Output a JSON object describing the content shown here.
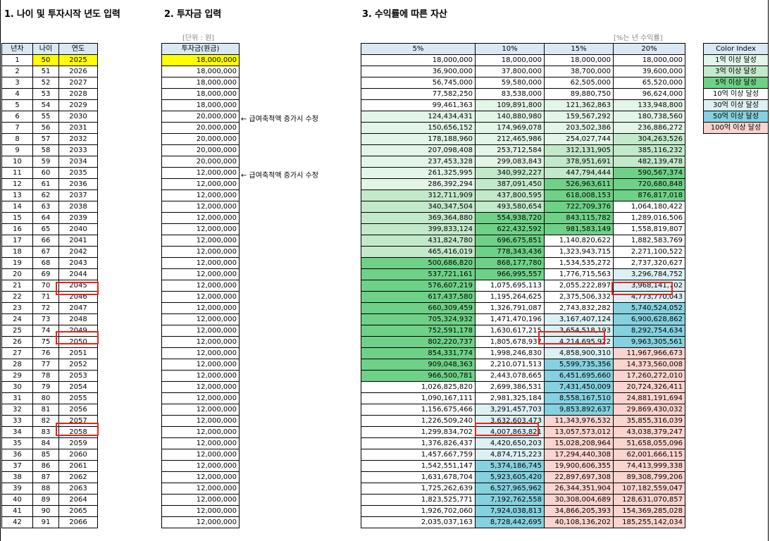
{
  "headings": {
    "age_input": "1. 나이 및 투자시작 년도 입력",
    "investment_input": "2. 투자금 입력",
    "assets_by_return": "3. 수익률에 따른 자산"
  },
  "unit_labels": {
    "won": "[단위 : 원]",
    "annual_return": "[%는 년 수익률]"
  },
  "table1_headers": [
    "년차",
    "나이",
    "연도"
  ],
  "table2_header": "투자금(원금)",
  "table3_headers": [
    "5%",
    "10%",
    "15%",
    "20%"
  ],
  "notes": [
    "← 급여축적액 증가시 수정",
    "← 급여축적액 증가시 수정"
  ],
  "color_index": {
    "title": "Color Index",
    "items": [
      {
        "label": "1억 이상 달성",
        "color": "#e3f5e6"
      },
      {
        "label": "3억 이상 달성",
        "color": "#c3e9cb"
      },
      {
        "label": "5억 이상 달성",
        "color": "#6fd187"
      },
      {
        "label": "10억 이상 달성",
        "color": "#ffffff"
      },
      {
        "label": "30억 이상 달성",
        "color": "#ddf1f5"
      },
      {
        "label": "50억 이상 달성",
        "color": "#86d1df"
      },
      {
        "label": "100억 이상 달성",
        "color": "#fbd4cf"
      }
    ]
  },
  "rows": [
    {
      "year": "1",
      "age": "50",
      "cal": "2025",
      "inv": "18,000,000",
      "r5": "18,000,000",
      "r10": "18,000,000",
      "r15": "18,000,000",
      "r20": "18,000,000"
    },
    {
      "year": "2",
      "age": "51",
      "cal": "2026",
      "inv": "18,000,000",
      "r5": "36,900,000",
      "r10": "37,800,000",
      "r15": "38,700,000",
      "r20": "39,600,000"
    },
    {
      "year": "3",
      "age": "52",
      "cal": "2027",
      "inv": "18,000,000",
      "r5": "56,745,000",
      "r10": "59,580,000",
      "r15": "62,505,000",
      "r20": "65,520,000"
    },
    {
      "year": "4",
      "age": "53",
      "cal": "2028",
      "inv": "18,000,000",
      "r5": "77,582,250",
      "r10": "83,538,000",
      "r15": "89,880,750",
      "r20": "96,624,000"
    },
    {
      "year": "5",
      "age": "54",
      "cal": "2029",
      "inv": "18,000,000",
      "r5": "99,461,363",
      "r10": "109,891,800",
      "r15": "121,362,863",
      "r20": "133,948,800"
    },
    {
      "year": "6",
      "age": "55",
      "cal": "2030",
      "inv": "20,000,000",
      "r5": "124,434,431",
      "r10": "140,880,980",
      "r15": "159,567,292",
      "r20": "180,738,560"
    },
    {
      "year": "7",
      "age": "56",
      "cal": "2031",
      "inv": "20,000,000",
      "r5": "150,656,152",
      "r10": "174,969,078",
      "r15": "203,502,386",
      "r20": "236,886,272"
    },
    {
      "year": "8",
      "age": "57",
      "cal": "2032",
      "inv": "20,000,000",
      "r5": "178,188,960",
      "r10": "212,465,986",
      "r15": "254,027,744",
      "r20": "304,263,526"
    },
    {
      "year": "9",
      "age": "58",
      "cal": "2033",
      "inv": "20,000,000",
      "r5": "207,098,408",
      "r10": "253,712,584",
      "r15": "312,131,905",
      "r20": "385,116,232"
    },
    {
      "year": "10",
      "age": "59",
      "cal": "2034",
      "inv": "20,000,000",
      "r5": "237,453,328",
      "r10": "299,083,843",
      "r15": "378,951,691",
      "r20": "482,139,478"
    },
    {
      "year": "11",
      "age": "60",
      "cal": "2035",
      "inv": "12,000,000",
      "r5": "261,325,995",
      "r10": "340,992,227",
      "r15": "447,794,444",
      "r20": "590,567,374"
    },
    {
      "year": "12",
      "age": "61",
      "cal": "2036",
      "inv": "12,000,000",
      "r5": "286,392,294",
      "r10": "387,091,450",
      "r15": "526,963,611",
      "r20": "720,680,848"
    },
    {
      "year": "13",
      "age": "62",
      "cal": "2037",
      "inv": "12,000,000",
      "r5": "312,711,909",
      "r10": "437,800,595",
      "r15": "618,008,153",
      "r20": "876,817,018"
    },
    {
      "year": "14",
      "age": "63",
      "cal": "2038",
      "inv": "12,000,000",
      "r5": "340,347,504",
      "r10": "493,580,654",
      "r15": "722,709,376",
      "r20": "1,064,180,422"
    },
    {
      "year": "15",
      "age": "64",
      "cal": "2039",
      "inv": "12,000,000",
      "r5": "369,364,880",
      "r10": "554,938,720",
      "r15": "843,115,782",
      "r20": "1,289,016,506"
    },
    {
      "year": "16",
      "age": "65",
      "cal": "2040",
      "inv": "12,000,000",
      "r5": "399,833,124",
      "r10": "622,432,592",
      "r15": "981,583,149",
      "r20": "1,558,819,807"
    },
    {
      "year": "17",
      "age": "66",
      "cal": "2041",
      "inv": "12,000,000",
      "r5": "431,824,780",
      "r10": "696,675,851",
      "r15": "1,140,820,622",
      "r20": "1,882,583,769"
    },
    {
      "year": "18",
      "age": "67",
      "cal": "2042",
      "inv": "12,000,000",
      "r5": "465,416,019",
      "r10": "778,343,436",
      "r15": "1,323,943,715",
      "r20": "2,271,100,522"
    },
    {
      "year": "19",
      "age": "68",
      "cal": "2043",
      "inv": "12,000,000",
      "r5": "500,686,820",
      "r10": "868,177,780",
      "r15": "1,534,535,272",
      "r20": "2,737,320,627"
    },
    {
      "year": "20",
      "age": "69",
      "cal": "2044",
      "inv": "12,000,000",
      "r5": "537,721,161",
      "r10": "966,995,557",
      "r15": "1,776,715,563",
      "r20": "3,296,784,752"
    },
    {
      "year": "21",
      "age": "70",
      "cal": "2045",
      "inv": "12,000,000",
      "r5": "576,607,219",
      "r10": "1,075,695,113",
      "r15": "2,055,222,897",
      "r20": "3,968,141,702"
    },
    {
      "year": "22",
      "age": "71",
      "cal": "2046",
      "inv": "12,000,000",
      "r5": "617,437,580",
      "r10": "1,195,264,625",
      "r15": "2,375,506,332",
      "r20": "4,773,770,043"
    },
    {
      "year": "23",
      "age": "72",
      "cal": "2047",
      "inv": "12,000,000",
      "r5": "660,309,459",
      "r10": "1,326,791,087",
      "r15": "2,743,832,282",
      "r20": "5,740,524,052"
    },
    {
      "year": "24",
      "age": "73",
      "cal": "2048",
      "inv": "12,000,000",
      "r5": "705,324,932",
      "r10": "1,471,470,196",
      "r15": "3,167,407,124",
      "r20": "6,900,628,862"
    },
    {
      "year": "25",
      "age": "74",
      "cal": "2049",
      "inv": "12,000,000",
      "r5": "752,591,178",
      "r10": "1,630,617,215",
      "r15": "3,654,518,193",
      "r20": "8,292,754,634"
    },
    {
      "year": "26",
      "age": "75",
      "cal": "2050",
      "inv": "12,000,000",
      "r5": "802,220,737",
      "r10": "1,805,678,937",
      "r15": "4,214,695,922",
      "r20": "9,963,305,561"
    },
    {
      "year": "27",
      "age": "76",
      "cal": "2051",
      "inv": "12,000,000",
      "r5": "854,331,774",
      "r10": "1,998,246,830",
      "r15": "4,858,900,310",
      "r20": "11,967,966,673"
    },
    {
      "year": "28",
      "age": "77",
      "cal": "2052",
      "inv": "12,000,000",
      "r5": "909,048,363",
      "r10": "2,210,071,513",
      "r15": "5,599,735,356",
      "r20": "14,373,560,008"
    },
    {
      "year": "29",
      "age": "78",
      "cal": "2053",
      "inv": "12,000,000",
      "r5": "966,500,781",
      "r10": "2,443,078,665",
      "r15": "6,451,695,660",
      "r20": "17,260,272,010"
    },
    {
      "year": "30",
      "age": "79",
      "cal": "2054",
      "inv": "12,000,000",
      "r5": "1,026,825,820",
      "r10": "2,699,386,531",
      "r15": "7,431,450,009",
      "r20": "20,724,326,411"
    },
    {
      "year": "31",
      "age": "80",
      "cal": "2055",
      "inv": "12,000,000",
      "r5": "1,090,167,111",
      "r10": "2,981,325,184",
      "r15": "8,558,167,510",
      "r20": "24,881,191,694"
    },
    {
      "year": "32",
      "age": "81",
      "cal": "2056",
      "inv": "12,000,000",
      "r5": "1,156,675,466",
      "r10": "3,291,457,703",
      "r15": "9,853,892,637",
      "r20": "29,869,430,032"
    },
    {
      "year": "33",
      "age": "82",
      "cal": "2057",
      "inv": "12,000,000",
      "r5": "1,226,509,240",
      "r10": "3,632,603,473",
      "r15": "11,343,976,532",
      "r20": "35,855,316,039"
    },
    {
      "year": "34",
      "age": "83",
      "cal": "2058",
      "inv": "12,000,000",
      "r5": "1,299,834,702",
      "r10": "4,007,863,821",
      "r15": "13,057,573,012",
      "r20": "43,038,379,247"
    },
    {
      "year": "35",
      "age": "84",
      "cal": "2059",
      "inv": "12,000,000",
      "r5": "1,376,826,437",
      "r10": "4,420,650,203",
      "r15": "15,028,208,964",
      "r20": "51,658,055,096"
    },
    {
      "year": "36",
      "age": "85",
      "cal": "2060",
      "inv": "12,000,000",
      "r5": "1,457,667,759",
      "r10": "4,874,715,223",
      "r15": "17,294,440,308",
      "r20": "62,001,666,115"
    },
    {
      "year": "37",
      "age": "86",
      "cal": "2061",
      "inv": "12,000,000",
      "r5": "1,542,551,147",
      "r10": "5,374,186,745",
      "r15": "19,900,606,355",
      "r20": "74,413,999,338"
    },
    {
      "year": "38",
      "age": "87",
      "cal": "2062",
      "inv": "12,000,000",
      "r5": "1,631,678,704",
      "r10": "5,923,605,420",
      "r15": "22,897,697,308",
      "r20": "89,308,799,206"
    },
    {
      "year": "39",
      "age": "88",
      "cal": "2063",
      "inv": "12,000,000",
      "r5": "1,725,262,639",
      "r10": "6,527,965,962",
      "r15": "26,344,351,904",
      "r20": "107,182,559,047"
    },
    {
      "year": "40",
      "age": "89",
      "cal": "2064",
      "inv": "12,000,000",
      "r5": "1,823,525,771",
      "r10": "7,192,762,558",
      "r15": "30,308,004,689",
      "r20": "128,631,070,857"
    },
    {
      "year": "41",
      "age": "90",
      "cal": "2065",
      "inv": "12,000,000",
      "r5": "1,926,702,060",
      "r10": "7,924,038,813",
      "r15": "34,866,205,393",
      "r20": "154,369,285,028"
    },
    {
      "year": "42",
      "age": "91",
      "cal": "2066",
      "inv": "12,000,000",
      "r5": "2,035,037,163",
      "r10": "8,728,442,695",
      "r15": "40,108,136,202",
      "r20": "185,255,142,034"
    }
  ]
}
